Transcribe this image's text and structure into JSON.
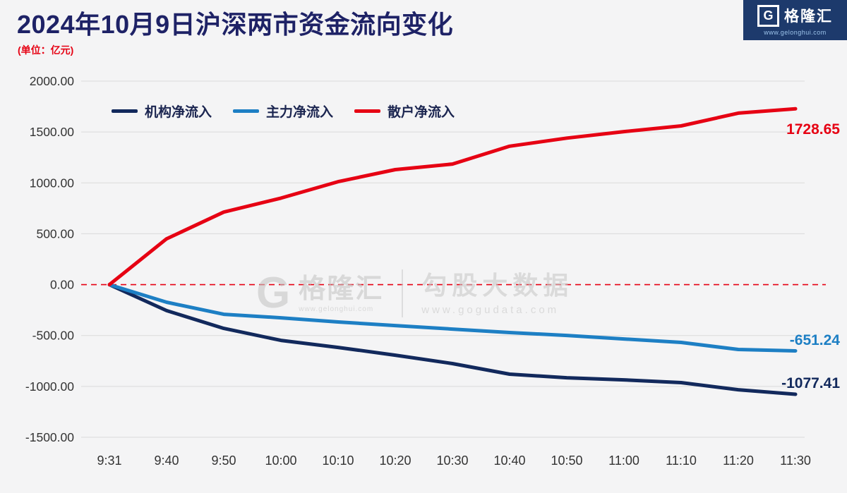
{
  "header": {
    "title": "2024年10月9日沪深两市资金流向变化",
    "unit_label": "(单位：亿元)",
    "logo": {
      "g": "G",
      "brand": "格隆汇",
      "url": "www.gelonghui.com"
    }
  },
  "watermark": {
    "g": "G",
    "brand": "格隆汇",
    "brand_url": "www.gelonghui.com",
    "right_text": "勾股大数据",
    "right_url": "www.gogudata.com"
  },
  "chart_data": {
    "type": "line",
    "title": "2024年10月9日沪深两市资金流向变化",
    "unit": "亿元",
    "x": [
      "9:31",
      "9:40",
      "9:50",
      "10:00",
      "10:10",
      "10:20",
      "10:30",
      "10:40",
      "10:50",
      "11:00",
      "11:10",
      "11:20",
      "11:30"
    ],
    "series": [
      {
        "key": "institutional-net-inflow",
        "name": "机构净流入",
        "color": "#12295c",
        "values": [
          0,
          -255,
          -430,
          -548,
          -617,
          -693,
          -776,
          -880,
          -915,
          -936,
          -963,
          -1033,
          -1077.41
        ],
        "end_value": -1077.41,
        "end_label": "-1077.41"
      },
      {
        "key": "main-force-net-inflow",
        "name": "主力净流入",
        "color": "#1d7fc4",
        "values": [
          0,
          -173,
          -291,
          -326,
          -367,
          -402,
          -437,
          -471,
          -499,
          -534,
          -568,
          -637,
          -651.24
        ],
        "end_value": -651.24,
        "end_label": "-651.24"
      },
      {
        "key": "retail-net-inflow",
        "name": "散户净流入",
        "color": "#e60113",
        "values": [
          0,
          450,
          713,
          850,
          1012,
          1130,
          1185,
          1360,
          1440,
          1504,
          1560,
          1685,
          1728.65
        ],
        "end_value": 1728.65,
        "end_label": "1728.65"
      }
    ],
    "ylim": [
      -1500,
      2000
    ],
    "yticks": [
      2000,
      1500,
      1000,
      500,
      0,
      -500,
      -1000,
      -1500
    ],
    "ytick_labels": [
      "2000.00",
      "1500.00",
      "1000.00",
      "500.00",
      "0.00",
      "-500.00",
      "-1000.00",
      "-1500.00"
    ],
    "zero_line_color": "#e60113",
    "grid": true,
    "legend_position": "top-left-inside"
  }
}
